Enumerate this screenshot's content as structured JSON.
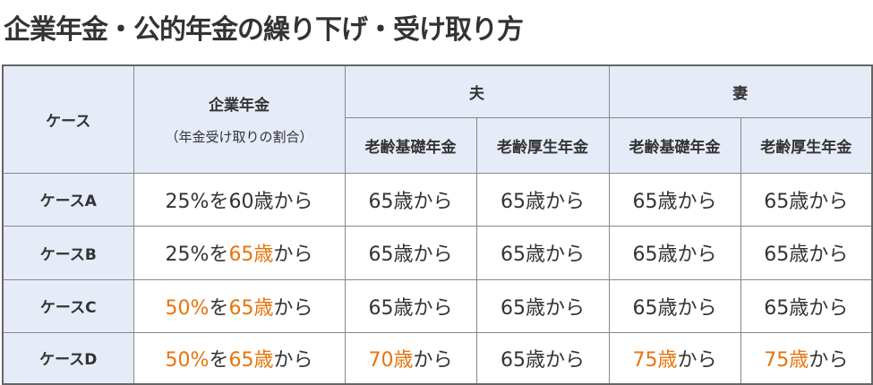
{
  "title": "企業年金・公的年金の繰り下げ・受け取り方",
  "highlight_color": "#e8740c",
  "table": {
    "header": {
      "case": "ケース",
      "pension": "企業年金",
      "pension_note": "（年金受け取りの割合）",
      "groups": [
        {
          "label": "夫",
          "columns": [
            "老齢基礎年金",
            "老齢厚生年金"
          ]
        },
        {
          "label": "妻",
          "columns": [
            "老齢基礎年金",
            "老齢厚生年金"
          ]
        }
      ]
    },
    "rows": [
      {
        "label": "ケースA",
        "cells": [
          [
            {
              "text": "25%を60歳から"
            }
          ],
          [
            {
              "text": "65歳から"
            }
          ],
          [
            {
              "text": "65歳から"
            }
          ],
          [
            {
              "text": "65歳から"
            }
          ],
          [
            {
              "text": "65歳から"
            }
          ]
        ]
      },
      {
        "label": "ケースB",
        "cells": [
          [
            {
              "text": "25%を"
            },
            {
              "text": "65歳",
              "highlight": true
            },
            {
              "text": "から"
            }
          ],
          [
            {
              "text": "65歳から"
            }
          ],
          [
            {
              "text": "65歳から"
            }
          ],
          [
            {
              "text": "65歳から"
            }
          ],
          [
            {
              "text": "65歳から"
            }
          ]
        ]
      },
      {
        "label": "ケースC",
        "cells": [
          [
            {
              "text": "50%",
              "highlight": true
            },
            {
              "text": "を"
            },
            {
              "text": "65歳",
              "highlight": true
            },
            {
              "text": "から"
            }
          ],
          [
            {
              "text": "65歳から"
            }
          ],
          [
            {
              "text": "65歳から"
            }
          ],
          [
            {
              "text": "65歳から"
            }
          ],
          [
            {
              "text": "65歳から"
            }
          ]
        ]
      },
      {
        "label": "ケースD",
        "cells": [
          [
            {
              "text": "50%",
              "highlight": true
            },
            {
              "text": "を"
            },
            {
              "text": "65歳",
              "highlight": true
            },
            {
              "text": "から"
            }
          ],
          [
            {
              "text": "70歳",
              "highlight": true
            },
            {
              "text": "から"
            }
          ],
          [
            {
              "text": "65歳から"
            }
          ],
          [
            {
              "text": "75歳",
              "highlight": true
            },
            {
              "text": "から"
            }
          ],
          [
            {
              "text": "75歳",
              "highlight": true
            },
            {
              "text": "から"
            }
          ]
        ]
      }
    ]
  }
}
